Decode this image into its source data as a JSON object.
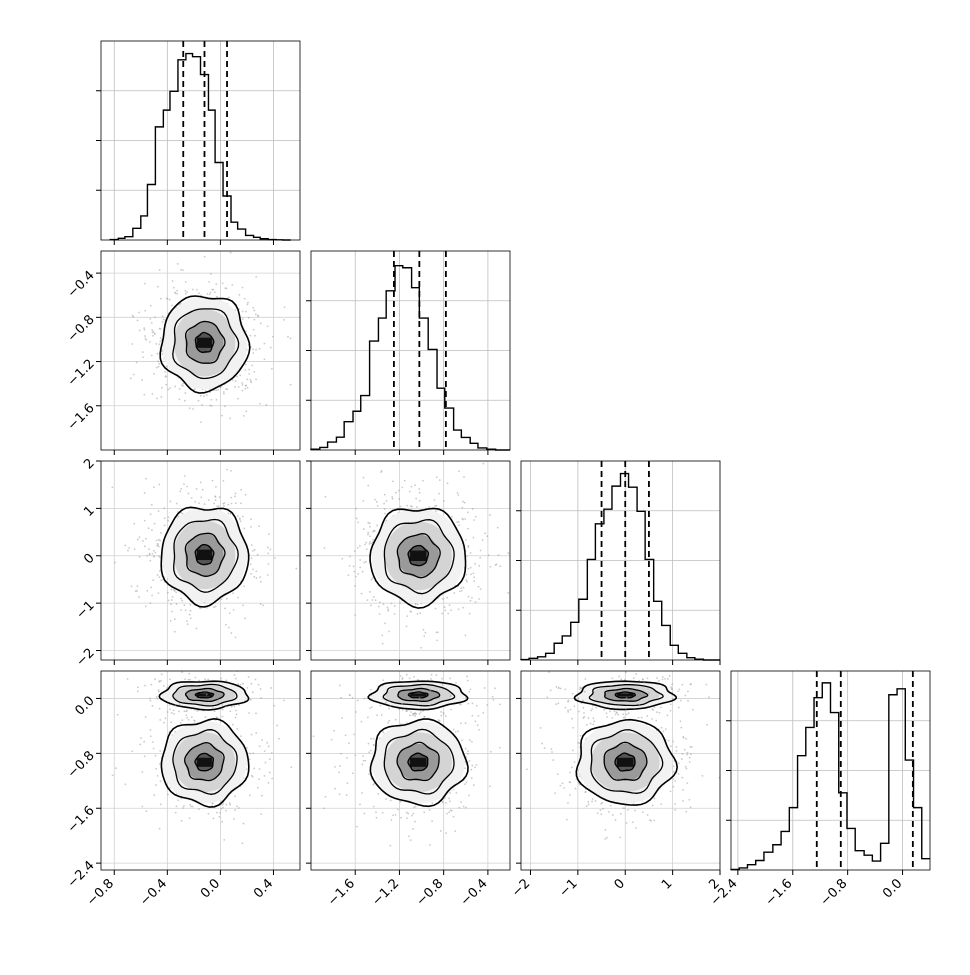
{
  "chart_data": {
    "type": "corner",
    "n_params": 4,
    "grid": true,
    "hist_color": "#000000",
    "contour_color": "#000000",
    "scatter_color": "#9e9e9e",
    "params": [
      {
        "range": [
          -0.9,
          0.6
        ],
        "ticks": [
          -0.8,
          -0.4,
          0.0,
          0.4
        ],
        "tick_labels": [
          "−0.8",
          "−0.4",
          "0.0",
          "0.4"
        ],
        "quantiles": [
          -0.28,
          -0.12,
          0.05
        ]
      },
      {
        "range": [
          -2.0,
          -0.2
        ],
        "ticks": [
          -1.6,
          -1.2,
          -0.8,
          -0.4
        ],
        "tick_labels": [
          "−1.6",
          "−1.2",
          "−0.8",
          "−0.4"
        ],
        "quantiles": [
          -1.25,
          -1.02,
          -0.78
        ]
      },
      {
        "range": [
          -2.2,
          2.0
        ],
        "ticks": [
          -2,
          -1,
          0,
          1,
          2
        ],
        "tick_labels": [
          "−2",
          "−1",
          "0",
          "1",
          "2"
        ],
        "quantiles": [
          -0.5,
          0.0,
          0.5
        ]
      },
      {
        "range": [
          -2.5,
          0.4
        ],
        "ticks": [
          -2.4,
          -1.6,
          -0.8,
          0.0
        ],
        "tick_labels": [
          "−2.4",
          "−1.6",
          "−0.8",
          "0.0"
        ],
        "quantiles": [
          -1.25,
          -0.9,
          0.15
        ]
      }
    ],
    "histograms": [
      {
        "param": 0,
        "bin_edges": [
          -0.83,
          -0.77,
          -0.72,
          -0.66,
          -0.6,
          -0.55,
          -0.49,
          -0.43,
          -0.38,
          -0.32,
          -0.26,
          -0.21,
          -0.15,
          -0.09,
          -0.04,
          0.02,
          0.08,
          0.13,
          0.19,
          0.25,
          0.3,
          0.36,
          0.42,
          0.47,
          0.53
        ],
        "counts": [
          0.2,
          0.8,
          1.6,
          5.6,
          11.5,
          26.5,
          54.0,
          62.0,
          71.0,
          86.0,
          89.0,
          87.5,
          79.0,
          62.0,
          37.0,
          21.0,
          8.5,
          5.2,
          2.2,
          1.3,
          0.6,
          0.2,
          0.1,
          0.0
        ],
        "ymax": 95
      },
      {
        "param": 1,
        "bin_edges": [
          -2.0,
          -1.92,
          -1.85,
          -1.77,
          -1.7,
          -1.62,
          -1.55,
          -1.47,
          -1.39,
          -1.32,
          -1.24,
          -1.17,
          -1.09,
          -1.02,
          -0.94,
          -0.86,
          -0.79,
          -0.71,
          -0.64,
          -0.56,
          -0.49,
          -0.41,
          -0.33,
          -0.26,
          -0.2
        ],
        "counts": [
          0.4,
          1.2,
          3.8,
          6.1,
          13.5,
          18.5,
          26.0,
          52.0,
          63.0,
          76.0,
          88.0,
          87.0,
          77.5,
          63.0,
          48.0,
          29.5,
          20.0,
          9.5,
          6.0,
          3.2,
          1.0,
          0.4,
          0.0,
          0.0
        ],
        "ymax": 95
      },
      {
        "param": 2,
        "bin_edges": [
          -2.2,
          -2.03,
          -1.85,
          -1.68,
          -1.5,
          -1.33,
          -1.15,
          -0.98,
          -0.8,
          -0.63,
          -0.45,
          -0.28,
          -0.1,
          0.07,
          0.25,
          0.42,
          0.6,
          0.77,
          0.95,
          1.12,
          1.3,
          1.47,
          1.65,
          1.82,
          2.0
        ],
        "counts": [
          0.2,
          0.8,
          1.5,
          3.2,
          8.0,
          11.5,
          18.0,
          29.0,
          48.0,
          65.0,
          72.0,
          83.0,
          89.0,
          82.5,
          71.0,
          48.0,
          28.0,
          16.5,
          7.0,
          3.2,
          1.1,
          0.4,
          0.0,
          0.0
        ],
        "ymax": 95
      },
      {
        "param": 3,
        "bin_edges": [
          -2.5,
          -2.38,
          -2.26,
          -2.14,
          -2.02,
          -1.89,
          -1.77,
          -1.65,
          -1.53,
          -1.41,
          -1.29,
          -1.17,
          -1.05,
          -0.93,
          -0.81,
          -0.69,
          -0.56,
          -0.44,
          -0.32,
          -0.2,
          -0.08,
          0.04,
          0.16,
          0.28,
          0.4
        ],
        "counts": [
          0.2,
          0.7,
          1.8,
          3.2,
          6.0,
          8.5,
          13.0,
          21.0,
          38.5,
          48.0,
          58.0,
          63.0,
          53.0,
          26.0,
          14.0,
          6.5,
          5.0,
          3.0,
          9.0,
          59.0,
          61.0,
          37.0,
          21.0,
          3.8
        ],
        "ymax": 67
      }
    ],
    "pairs": [
      {
        "x_param": 0,
        "y_param": 1,
        "modes": [
          {
            "cx": -0.12,
            "cy": -1.03,
            "sx": 0.16,
            "sy": 0.21
          }
        ]
      },
      {
        "x_param": 0,
        "y_param": 2,
        "modes": [
          {
            "cx": -0.12,
            "cy": 0.02,
            "sx": 0.16,
            "sy": 0.5
          }
        ]
      },
      {
        "x_param": 1,
        "y_param": 2,
        "modes": [
          {
            "cx": -1.03,
            "cy": 0.0,
            "sx": 0.21,
            "sy": 0.5
          }
        ]
      },
      {
        "x_param": 0,
        "y_param": 3,
        "modes": [
          {
            "cx": -0.12,
            "cy": 0.05,
            "sx": 0.16,
            "sy": 0.1
          },
          {
            "cx": -0.12,
            "cy": -0.93,
            "sx": 0.16,
            "sy": 0.3
          }
        ]
      },
      {
        "x_param": 1,
        "y_param": 3,
        "modes": [
          {
            "cx": -1.03,
            "cy": 0.05,
            "sx": 0.21,
            "sy": 0.1
          },
          {
            "cx": -1.03,
            "cy": -0.93,
            "sx": 0.21,
            "sy": 0.3
          }
        ]
      },
      {
        "x_param": 2,
        "y_param": 3,
        "modes": [
          {
            "cx": 0.0,
            "cy": 0.05,
            "sx": 0.5,
            "sy": 0.1
          },
          {
            "cx": 0.0,
            "cy": -0.93,
            "sx": 0.5,
            "sy": 0.3
          }
        ]
      }
    ]
  }
}
